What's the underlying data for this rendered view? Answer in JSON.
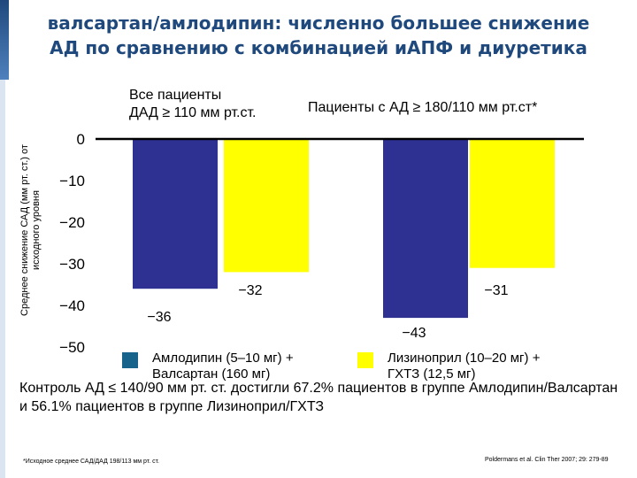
{
  "title_lines": [
    "валсартан/амлодипин: численно большее снижение",
    "АД по сравнению с комбинацией иАПФ и диуретика"
  ],
  "colors": {
    "title": "#1f497d",
    "amlodipine_valsartan": "#2e3192",
    "lisinopril_hctz": "#ffff00",
    "legend_amlodipine_valsartan": "#17638c"
  },
  "chart_data": {
    "type": "bar",
    "title": "",
    "ylabel": "Среднее снижение САД (мм рт. ст.) от исходного уровня",
    "ylabel_lines": [
      "Среднее снижение САД (мм рт. ст.) от",
      "исходного уровня"
    ],
    "ylim": [
      -50,
      0
    ],
    "yticks": [
      0,
      -10,
      -20,
      -30,
      -40,
      -50
    ],
    "ytick_labels": [
      "0",
      "−10",
      "−20",
      "−30",
      "−40",
      "−50"
    ],
    "categories": [
      "Все пациенты ДАД ≥ 110 мм рт.ст.",
      "Пациенты с АД ≥ 180/110 мм рт.ст*"
    ],
    "category_label_lines": [
      [
        "Все пациенты",
        "ДАД ≥ 110 мм рт.ст."
      ],
      [
        "Пациенты с АД ≥ 180/110 мм рт.ст*"
      ]
    ],
    "series": [
      {
        "name": "Амлодипин (5–10 мг) + Валсартан (160 мг)",
        "values": [
          -36,
          -43
        ],
        "labels": [
          "−36",
          "−43"
        ]
      },
      {
        "name": "Лизиноприл (10–20 мг) + ГХТЗ (12,5 мг)",
        "values": [
          -32,
          -31
        ],
        "labels": [
          "−32",
          "−31"
        ]
      }
    ],
    "legend_labels": [
      "Амлодипин (5–10 мг) +\nВалсартан (160 мг)",
      "Лизиноприл (10–20 мг) +\nГХТЗ (12,5 мг)"
    ],
    "legend": "bottom",
    "grid": false
  },
  "note": "Контроль АД ≤ 140/90 мм рт. ст. достигли 67.2% пациентов в группе Амлодипин/Валсартан и 56.1% пациентов в группе Лизиноприл/ГХТЗ",
  "footnote_left": "*Исходное среднее САД/ДАД 198/113 мм рт. ст.",
  "footnote_right": "Poldermans et al. Clin Ther 2007; 29: 279-89"
}
